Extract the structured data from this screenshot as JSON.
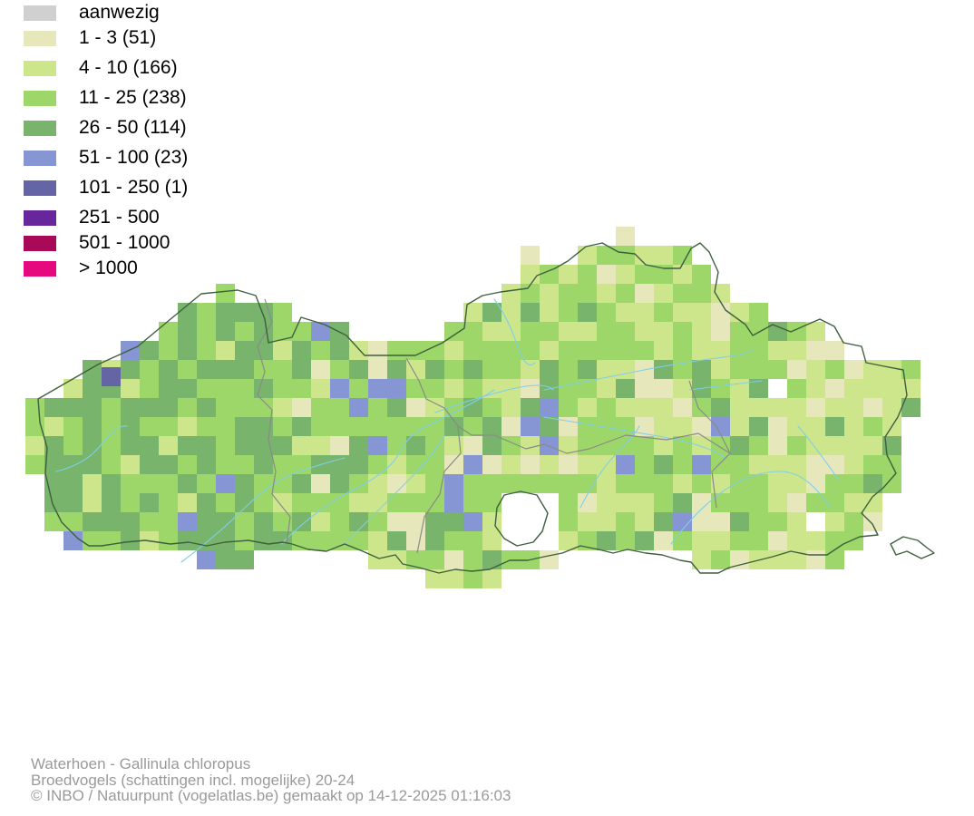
{
  "legend": {
    "items": [
      {
        "label": "aanwezig",
        "color": "#d0d0d0"
      },
      {
        "label": "1 - 3 (51)",
        "color": "#e6e8bc"
      },
      {
        "label": "4 - 10 (166)",
        "color": "#cde68c"
      },
      {
        "label": "11 - 25 (238)",
        "color": "#9dd669"
      },
      {
        "label": "26 - 50 (114)",
        "color": "#78b46b"
      },
      {
        "label": "51 - 100 (23)",
        "color": "#8695d4"
      },
      {
        "label": "101 - 250 (1)",
        "color": "#6565a6"
      },
      {
        "label": "251 - 500",
        "color": "#67269b"
      },
      {
        "label": "501 - 1000",
        "color": "#a80a57"
      },
      {
        "label": "> 1000",
        "color": "#e5087f"
      }
    ]
  },
  "map": {
    "colors": {
      "border": "#3f5f3f",
      "province_border": "#8a8a8a",
      "river": "#7fcfe8"
    }
  },
  "footer": {
    "line1": "Waterhoen - Gallinula chloropus",
    "line2": "Broedvogels (schattingen incl. mogelijke) 20-24",
    "line3": "© INBO / Natuurpunt (vogelatlas.be) gemaakt op 14-12-2025 01:16:03"
  }
}
